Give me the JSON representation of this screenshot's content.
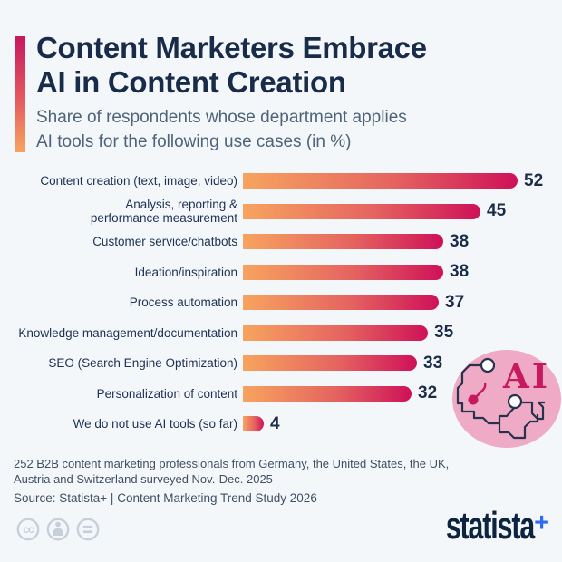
{
  "chart_data": {
    "type": "bar",
    "orientation": "horizontal",
    "title": "Content Marketers Embrace AI in Content Creation",
    "subtitle": "Share of respondents whose department applies AI tools for the following use cases (in %)",
    "categories": [
      "Content creation (text, image, video)",
      "Analysis, reporting &\nperformance measurement",
      "Customer service/chatbots",
      "Ideation/inspiration",
      "Process automation",
      "Knowledge management/documentation",
      "SEO (Search Engine Optimization)",
      "Personalization of content",
      "We do not use AI tools (so far)"
    ],
    "values": [
      52,
      45,
      38,
      38,
      37,
      35,
      33,
      32,
      4
    ],
    "xlabel": "",
    "ylabel": "",
    "xlim": [
      0,
      52
    ],
    "value_labels_shown": true,
    "grid": false,
    "legend": false,
    "bar_gradient": [
      "#f7a45f",
      "#ce1158"
    ]
  },
  "header": {
    "title_lines": [
      "Content Marketers Embrace",
      "AI in Content Creation"
    ],
    "subtitle_lines": [
      "Share of respondents whose department applies",
      "AI tools for the following use cases (in %)"
    ]
  },
  "ai_badge": {
    "label": "AI"
  },
  "footer": {
    "note_lines": [
      "252 B2B content marketing professionals from Germany, the United States, the UK,",
      "Austria and Switzerland surveyed Nov.-Dec. 2025"
    ],
    "source": "Source: Statista+ | Content Marketing Trend Study 2026",
    "license_icons": [
      {
        "name": "cc-icon",
        "glyph": "cc"
      },
      {
        "name": "attribution-person-icon",
        "glyph": ""
      },
      {
        "name": "equals-icon",
        "glyph": ""
      }
    ]
  },
  "branding": {
    "logo_text": "statista",
    "logo_plus": "+"
  },
  "colors": {
    "background": "#f4f7fa",
    "navy": "#1b2c49",
    "subtitle_slate": "#4e6379",
    "bar_start": "#f7a45f",
    "bar_end": "#ce1158",
    "crimson": "#c6195e",
    "badge_pink": "#efaac5",
    "logo_blue": "#2e6bf2",
    "license_gray": "#c7d0da"
  }
}
